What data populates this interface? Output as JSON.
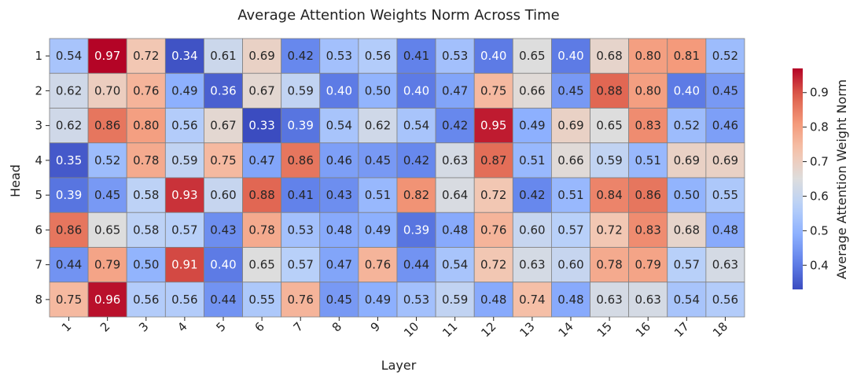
{
  "chart_data": {
    "type": "heatmap",
    "title": "Average Attention Weights Norm Across Time",
    "xlabel": "Layer",
    "ylabel": "Head",
    "x_categories": [
      "1",
      "2",
      "3",
      "4",
      "5",
      "6",
      "7",
      "8",
      "9",
      "10",
      "11",
      "12",
      "13",
      "14",
      "15",
      "16",
      "17",
      "18"
    ],
    "y_categories": [
      "1",
      "2",
      "3",
      "4",
      "5",
      "6",
      "7",
      "8"
    ],
    "values": [
      [
        0.54,
        0.97,
        0.72,
        0.34,
        0.61,
        0.69,
        0.42,
        0.53,
        0.56,
        0.41,
        0.53,
        0.4,
        0.65,
        0.4,
        0.68,
        0.8,
        0.81,
        0.52
      ],
      [
        0.62,
        0.7,
        0.76,
        0.49,
        0.36,
        0.67,
        0.59,
        0.4,
        0.5,
        0.4,
        0.47,
        0.75,
        0.66,
        0.45,
        0.88,
        0.8,
        0.4,
        0.45
      ],
      [
        0.62,
        0.86,
        0.8,
        0.56,
        0.67,
        0.33,
        0.39,
        0.54,
        0.62,
        0.54,
        0.42,
        0.95,
        0.49,
        0.69,
        0.65,
        0.83,
        0.52,
        0.46
      ],
      [
        0.35,
        0.52,
        0.78,
        0.59,
        0.75,
        0.47,
        0.86,
        0.46,
        0.45,
        0.42,
        0.63,
        0.87,
        0.51,
        0.66,
        0.59,
        0.51,
        0.69,
        0.69
      ],
      [
        0.39,
        0.45,
        0.58,
        0.93,
        0.6,
        0.88,
        0.41,
        0.43,
        0.51,
        0.82,
        0.64,
        0.72,
        0.42,
        0.51,
        0.84,
        0.86,
        0.5,
        0.55
      ],
      [
        0.86,
        0.65,
        0.58,
        0.57,
        0.43,
        0.78,
        0.53,
        0.48,
        0.49,
        0.39,
        0.48,
        0.76,
        0.6,
        0.57,
        0.72,
        0.83,
        0.68,
        0.48
      ],
      [
        0.44,
        0.79,
        0.5,
        0.91,
        0.4,
        0.65,
        0.57,
        0.47,
        0.76,
        0.44,
        0.54,
        0.72,
        0.63,
        0.6,
        0.78,
        0.79,
        0.57,
        0.63
      ],
      [
        0.75,
        0.96,
        0.56,
        0.56,
        0.44,
        0.55,
        0.76,
        0.45,
        0.49,
        0.53,
        0.59,
        0.48,
        0.74,
        0.48,
        0.63,
        0.63,
        0.54,
        0.56
      ]
    ],
    "colormap": "coolwarm",
    "vmin": 0.33,
    "vmax": 0.97,
    "colorbar": {
      "label": "Average Attention Weight Norm",
      "ticks": [
        "0.4",
        "0.5",
        "0.6",
        "0.7",
        "0.8",
        "0.9"
      ]
    },
    "annotations": true,
    "grid": false,
    "cell_border_color": "#808080"
  }
}
